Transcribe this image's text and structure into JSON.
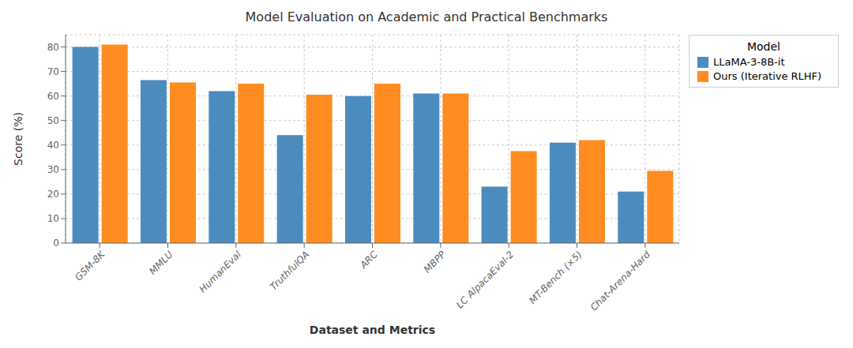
{
  "chart_data": {
    "type": "bar",
    "title": "Model Evaluation on Academic and Practical Benchmarks",
    "xlabel": "Dataset and Metrics",
    "ylabel": "Score (%)",
    "categories": [
      "GSM-8K",
      "MMLU",
      "HumanEval",
      "TruthfulQA",
      "ARC",
      "MBPP",
      "LC AlpacaEval-2",
      "MT-Bench (×5)",
      "Chat-Arena-Hard"
    ],
    "series": [
      {
        "name": "LLaMA-3-8B-it",
        "color": "#4c8bbe",
        "values": [
          80,
          66.5,
          62,
          44,
          60,
          61,
          23,
          41,
          21
        ]
      },
      {
        "name": "Ours (Iterative RLHF)",
        "color": "#ff8c20",
        "values": [
          81,
          65.5,
          65,
          60.5,
          65,
          61,
          37.5,
          42,
          29.5
        ]
      }
    ],
    "ylim": [
      0,
      85
    ],
    "yticks": [
      0,
      10,
      20,
      30,
      40,
      50,
      60,
      70,
      80
    ],
    "grid": true,
    "legend": "upper right",
    "legend_title": "Model"
  }
}
